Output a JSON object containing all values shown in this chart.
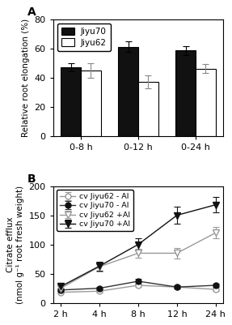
{
  "panel_A": {
    "title": "A",
    "categories": [
      "0-8 h",
      "0-12 h",
      "0-24 h"
    ],
    "jiyu70_values": [
      47,
      61,
      58.5
    ],
    "jiyu70_errors": [
      3,
      3.5,
      3
    ],
    "jiyu62_values": [
      45,
      37,
      46
    ],
    "jiyu62_errors": [
      5,
      4.5,
      3
    ],
    "ylabel": "Relative root elongation (%)",
    "ylim": [
      0,
      80
    ],
    "yticks": [
      0,
      20,
      40,
      60,
      80
    ],
    "bar_width": 0.35,
    "jiyu70_color": "#111111",
    "jiyu62_color": "#ffffff"
  },
  "panel_B": {
    "title": "B",
    "x_positions": [
      0,
      1,
      2,
      3,
      4
    ],
    "x_labels": [
      "2 h",
      "4 h",
      "8 h",
      "12 h",
      "24 h"
    ],
    "jiyu62_noAl": [
      18,
      20,
      30,
      27,
      23
    ],
    "jiyu62_noAl_err": [
      2,
      2,
      3,
      3,
      2
    ],
    "jiyu70_noAl": [
      22,
      25,
      37,
      27,
      30
    ],
    "jiyu70_noAl_err": [
      2,
      2,
      4,
      3,
      3
    ],
    "jiyu62_Al": [
      25,
      62,
      85,
      85,
      120
    ],
    "jiyu62_Al_err": [
      3,
      8,
      8,
      9,
      10
    ],
    "jiyu70_Al": [
      28,
      63,
      100,
      150,
      168
    ],
    "jiyu70_Al_err": [
      3,
      8,
      10,
      15,
      13
    ],
    "ylabel_line1": "Citrate efflux",
    "ylabel_line2": "(nmol g⁻¹ root fresh weight)",
    "ylim": [
      0,
      200
    ],
    "yticks": [
      0,
      50,
      100,
      150,
      200
    ],
    "legend_labels": [
      "cv Jiyu62 - Al",
      "cv Jiyu70 - Al",
      "cv Jiyu62 +Al",
      "cv Jiyu70 +Al"
    ],
    "color_light": "#999999",
    "color_dark": "#333333",
    "color_black": "#111111"
  }
}
